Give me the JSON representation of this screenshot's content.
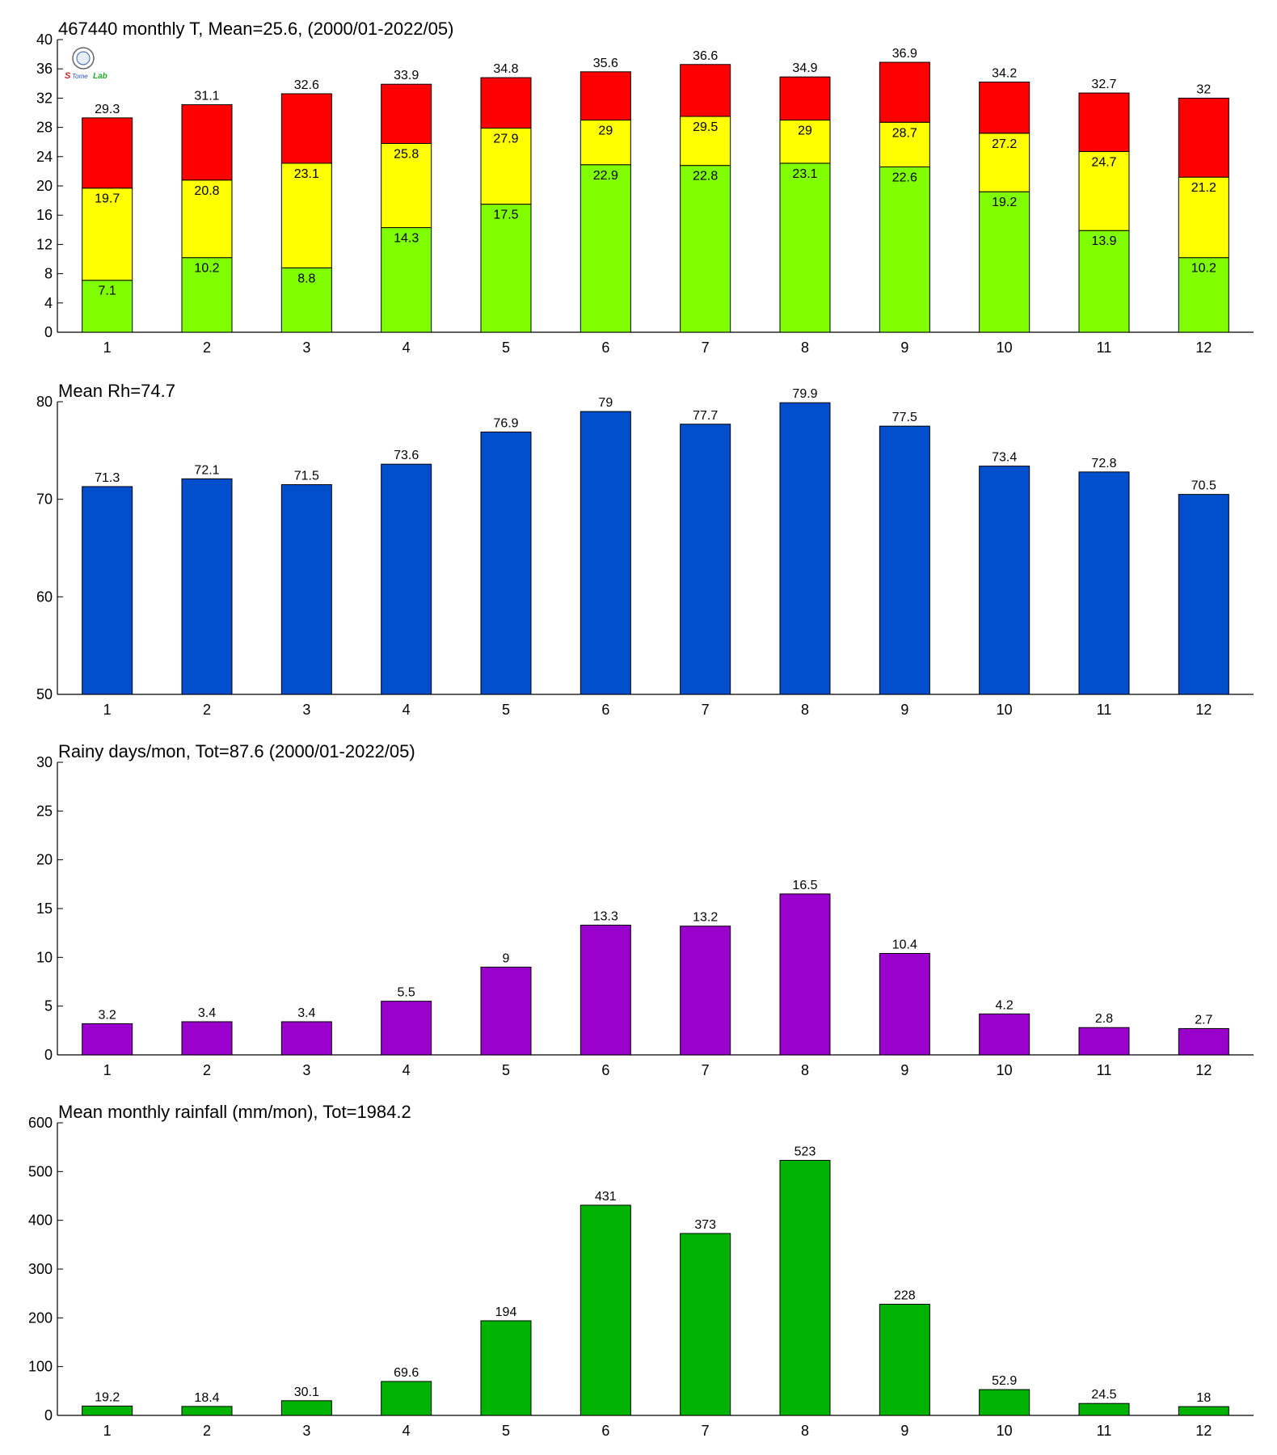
{
  "logo": {
    "text": "Lab"
  },
  "chart_data": [
    {
      "type": "bar",
      "subtype": "stacked",
      "title": "467440 monthly T, Mean=25.6, (2000/01-2022/05)",
      "categories": [
        "1",
        "2",
        "3",
        "4",
        "5",
        "6",
        "7",
        "8",
        "9",
        "10",
        "11",
        "12"
      ],
      "ylim": [
        0,
        40
      ],
      "yticks": [
        0,
        4,
        8,
        12,
        16,
        20,
        24,
        28,
        32,
        36,
        40
      ],
      "series": [
        {
          "color": "#80ff00",
          "values": [
            7.1,
            10.2,
            8.8,
            14.3,
            17.5,
            22.9,
            22.8,
            23.1,
            22.6,
            19.2,
            13.9,
            10.2
          ],
          "labels": [
            "7.1",
            "10.2",
            "8.8",
            "14.3",
            "17.5",
            "22.9",
            "22.8",
            "23.1",
            "22.6",
            "19.2",
            "13.9",
            "10.2"
          ]
        },
        {
          "color": "#ffff00",
          "values": [
            19.7,
            20.8,
            23.1,
            25.8,
            27.9,
            29,
            29.5,
            29,
            28.7,
            27.2,
            24.7,
            21.2
          ],
          "labels": [
            "19.7",
            "20.8",
            "23.1",
            "25.8",
            "27.9",
            "29",
            "29.5",
            "29",
            "28.7",
            "27.2",
            "24.7",
            "21.2"
          ]
        },
        {
          "color": "#ff0000",
          "values": [
            29.3,
            31.1,
            32.6,
            33.9,
            34.8,
            35.6,
            36.6,
            34.9,
            36.9,
            34.2,
            32.7,
            32
          ],
          "labels": [
            "29.3",
            "31.1",
            "32.6",
            "33.9",
            "34.8",
            "35.6",
            "36.6",
            "34.9",
            "36.9",
            "34.2",
            "32.7",
            "32"
          ]
        }
      ]
    },
    {
      "type": "bar",
      "title": "Mean Rh=74.7",
      "categories": [
        "1",
        "2",
        "3",
        "4",
        "5",
        "6",
        "7",
        "8",
        "9",
        "10",
        "11",
        "12"
      ],
      "ylim": [
        50,
        80
      ],
      "yticks": [
        50,
        60,
        70,
        80
      ],
      "color": "#004ecc",
      "values": [
        71.3,
        72.1,
        71.5,
        73.6,
        76.9,
        79,
        77.7,
        79.9,
        77.5,
        73.4,
        72.8,
        70.5
      ],
      "labels": [
        "71.3",
        "72.1",
        "71.5",
        "73.6",
        "76.9",
        "79",
        "77.7",
        "79.9",
        "77.5",
        "73.4",
        "72.8",
        "70.5"
      ]
    },
    {
      "type": "bar",
      "title": "Rainy days/mon, Tot=87.6 (2000/01-2022/05)",
      "categories": [
        "1",
        "2",
        "3",
        "4",
        "5",
        "6",
        "7",
        "8",
        "9",
        "10",
        "11",
        "12"
      ],
      "ylim": [
        0,
        30
      ],
      "yticks": [
        0,
        5,
        10,
        15,
        20,
        25,
        30
      ],
      "color": "#9900cc",
      "values": [
        3.2,
        3.4,
        3.4,
        5.5,
        9,
        13.3,
        13.2,
        16.5,
        10.4,
        4.2,
        2.8,
        2.7
      ],
      "labels": [
        "3.2",
        "3.4",
        "3.4",
        "5.5",
        "9",
        "13.3",
        "13.2",
        "16.5",
        "10.4",
        "4.2",
        "2.8",
        "2.7"
      ]
    },
    {
      "type": "bar",
      "title": "Mean monthly rainfall (mm/mon), Tot=1984.2",
      "categories": [
        "1",
        "2",
        "3",
        "4",
        "5",
        "6",
        "7",
        "8",
        "9",
        "10",
        "11",
        "12"
      ],
      "ylim": [
        0,
        600
      ],
      "yticks": [
        0,
        100,
        200,
        300,
        400,
        500,
        600
      ],
      "color": "#00b300",
      "values": [
        19.2,
        18.4,
        30.1,
        69.6,
        194,
        431,
        373,
        523,
        228,
        52.9,
        24.5,
        18
      ],
      "labels": [
        "19.2",
        "18.4",
        "30.1",
        "69.6",
        "194",
        "431",
        "373",
        "523",
        "228",
        "52.9",
        "24.5",
        "18"
      ]
    }
  ]
}
